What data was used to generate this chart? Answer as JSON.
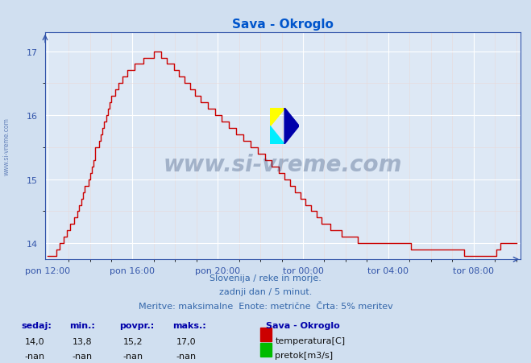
{
  "title": "Sava - Okroglo",
  "title_color": "#0055cc",
  "bg_color": "#d0dff0",
  "plot_bg_color": "#dde8f5",
  "grid_color_major": "#ffffff",
  "grid_color_minor": "#e8d8d8",
  "line_color": "#cc0000",
  "axis_color": "#3355aa",
  "tick_label_color": "#3355aa",
  "ylim_min": 13.75,
  "ylim_max": 17.3,
  "yticks": [
    14,
    15,
    16,
    17
  ],
  "xtick_labels": [
    "pon 12:00",
    "pon 16:00",
    "pon 20:00",
    "tor 00:00",
    "tor 04:00",
    "tor 08:00"
  ],
  "footnote_line1": "Slovenija / reke in morje.",
  "footnote_line2": "zadnji dan / 5 minut.",
  "footnote_line3": "Meritve: maksimalne  Enote: metrične  Črta: 5% meritev",
  "footnote_color": "#3366aa",
  "watermark": "www.si-vreme.com",
  "watermark_color": "#1a3566",
  "legend_title": "Sava - Okroglo",
  "legend_color": "#0000aa",
  "stats_headers": [
    "sedaj:",
    "min.:",
    "povpr.:",
    "maks.:"
  ],
  "stats_temp": [
    "14,0",
    "13,8",
    "15,2",
    "17,0"
  ],
  "stats_flow": [
    "-nan",
    "-nan",
    "-nan",
    "-nan"
  ],
  "temp_color": "#cc0000",
  "flow_color": "#00bb00",
  "temp_label": "temperatura[C]",
  "flow_label": "pretok[m3/s]",
  "sidebar_text": "www.si-vreme.com",
  "sidebar_color": "#4466aa"
}
